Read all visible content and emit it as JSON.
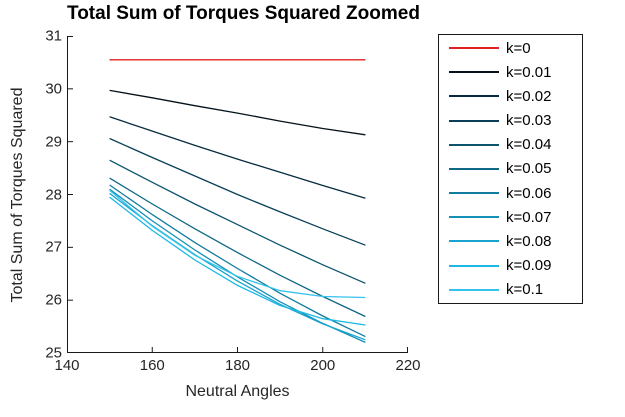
{
  "figure": {
    "background": "#ffffff",
    "axis_color": "#1a1a1a",
    "tick_label_color": "#262626"
  },
  "chart_data": {
    "type": "line",
    "title": "Total Sum of Torques Squared Zoomed",
    "xlabel": "Neutral Angles",
    "ylabel": "Total Sum of Torques Squared",
    "xlim": [
      140,
      220
    ],
    "ylim": [
      25,
      31
    ],
    "x_ticks": [
      140,
      160,
      180,
      200,
      220
    ],
    "y_ticks": [
      25,
      26,
      27,
      28,
      29,
      30,
      31
    ],
    "grid": false,
    "box": false,
    "legend_position": "outside-right",
    "x": [
      150,
      160,
      170,
      180,
      190,
      200,
      210
    ],
    "series": [
      {
        "name": "k=0",
        "color": "#e02020",
        "values": [
          30.55,
          30.55,
          30.55,
          30.55,
          30.55,
          30.55,
          30.55
        ]
      },
      {
        "name": "k=0.01",
        "color": "#04121c",
        "values": [
          29.97,
          29.83,
          29.68,
          29.54,
          29.39,
          29.25,
          29.13
        ]
      },
      {
        "name": "k=0.02",
        "color": "#062c40",
        "values": [
          29.47,
          29.2,
          28.93,
          28.67,
          28.42,
          28.17,
          27.93
        ]
      },
      {
        "name": "k=0.03",
        "color": "#094057",
        "values": [
          29.06,
          28.7,
          28.35,
          28.0,
          27.67,
          27.35,
          27.04
        ]
      },
      {
        "name": "k=0.04",
        "color": "#0c546e",
        "values": [
          28.65,
          28.23,
          27.82,
          27.43,
          27.04,
          26.67,
          26.32
        ]
      },
      {
        "name": "k=0.05",
        "color": "#0f6886",
        "values": [
          28.31,
          27.82,
          27.35,
          26.9,
          26.47,
          26.07,
          25.69
        ]
      },
      {
        "name": "k=0.06",
        "color": "#127c9e",
        "values": [
          28.18,
          27.62,
          27.09,
          26.6,
          26.13,
          25.7,
          25.31
        ]
      },
      {
        "name": "k=0.07",
        "color": "#1590b6",
        "values": [
          28.1,
          27.5,
          26.95,
          26.44,
          25.97,
          25.56,
          25.2
        ]
      },
      {
        "name": "k=0.08",
        "color": "#18a4ce",
        "values": [
          28.02,
          27.41,
          26.86,
          26.36,
          25.92,
          25.55,
          25.25
        ]
      },
      {
        "name": "k=0.09",
        "color": "#1bb8e6",
        "values": [
          27.95,
          27.32,
          26.76,
          26.28,
          25.9,
          25.65,
          25.53
        ]
      },
      {
        "name": "k=0.1",
        "color": "#35c2ec",
        "values": [
          28.08,
          27.4,
          26.85,
          26.45,
          26.18,
          26.07,
          26.05
        ]
      }
    ]
  }
}
